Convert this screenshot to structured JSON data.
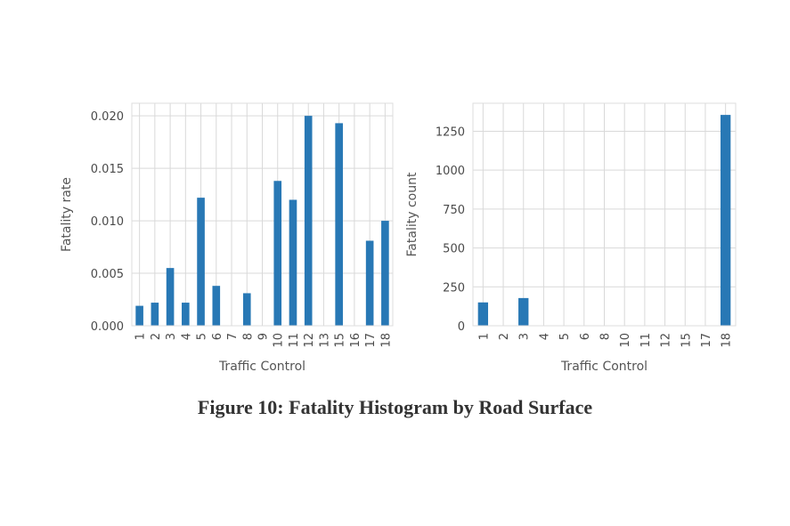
{
  "figure": {
    "caption": "Figure 10: Fatality Histogram by Road Surface"
  },
  "colors": {
    "bar": "#2878b5",
    "grid": "#d9d9d9",
    "frame": "#dddddd"
  },
  "chart_data": [
    {
      "type": "bar",
      "xlabel": "Traffic Control",
      "ylabel": "Fatality rate",
      "categories": [
        "1",
        "2",
        "3",
        "4",
        "5",
        "6",
        "7",
        "8",
        "9",
        "10",
        "11",
        "12",
        "13",
        "15",
        "16",
        "17",
        "18"
      ],
      "values": [
        0.0019,
        0.0022,
        0.0055,
        0.0022,
        0.0122,
        0.0038,
        0,
        0.0031,
        0,
        0.0138,
        0.012,
        0.02,
        0,
        0.0193,
        0,
        0.0081,
        0.01
      ],
      "ylim": [
        0,
        0.0212
      ],
      "yticks": [
        0,
        0.005,
        0.01,
        0.015,
        0.02
      ],
      "ytick_labels": [
        "0.000",
        "0.005",
        "0.010",
        "0.015",
        "0.020"
      ],
      "grid": true
    },
    {
      "type": "bar",
      "xlabel": "Traffic Control",
      "ylabel": "Fatality count",
      "categories": [
        "1",
        "2",
        "3",
        "4",
        "5",
        "6",
        "8",
        "10",
        "11",
        "12",
        "15",
        "17",
        "18"
      ],
      "values": [
        150,
        0,
        178,
        0,
        0,
        0,
        0,
        0,
        0,
        0,
        0,
        0,
        1355
      ],
      "ylim": [
        0,
        1430
      ],
      "yticks": [
        0,
        250,
        500,
        750,
        1000,
        1250
      ],
      "ytick_labels": [
        "0",
        "250",
        "500",
        "750",
        "1000",
        "1250"
      ],
      "grid": true
    }
  ]
}
